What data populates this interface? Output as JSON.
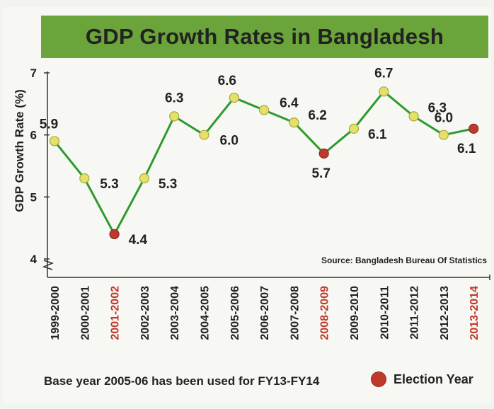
{
  "chart_data": {
    "type": "line",
    "title": "GDP Growth Rates in Bangladesh",
    "ylabel": "GDP Growth Rate (%)",
    "xlabel": "",
    "ylim": [
      4,
      7
    ],
    "yticks": [
      "4",
      "5",
      "6",
      "7"
    ],
    "categories": [
      "1999-2000",
      "2000-2001",
      "2001-2002",
      "2002-2003",
      "2003-2004",
      "2004-2005",
      "2005-2006",
      "2006-2007",
      "2007-2008",
      "2008-2009",
      "2009-2010",
      "2010-2011",
      "2011-2012",
      "2012-2013",
      "2013-2014"
    ],
    "values": [
      5.9,
      5.3,
      4.4,
      5.3,
      6.3,
      6.0,
      6.6,
      6.4,
      6.2,
      5.7,
      6.1,
      6.7,
      6.3,
      6.0,
      6.1
    ],
    "value_labels": [
      "5.9",
      "5.3",
      "4.4",
      "5.3",
      "6.3",
      "6.0",
      "6.6",
      "6.4",
      "6.2",
      "5.7",
      "6.1",
      "6.7",
      "6.3",
      "6.0",
      "6.1"
    ],
    "election_years": [
      "2001-2002",
      "2008-2009",
      "2013-2014"
    ],
    "source": "Source: Bangladesh Bureau Of Statistics",
    "legend": {
      "label": "Election Year",
      "placement": "bottom-right"
    },
    "footnote": "Base year 2005-06 has been used for FY13-FY14"
  },
  "colors": {
    "title_band": "#6aa43a",
    "line": "#2e9a2e",
    "marker": "#e4e06a",
    "marker_border": "#a7a93a",
    "election_marker": "#c0392b",
    "election_label": "#c0392b",
    "text": "#222222"
  }
}
